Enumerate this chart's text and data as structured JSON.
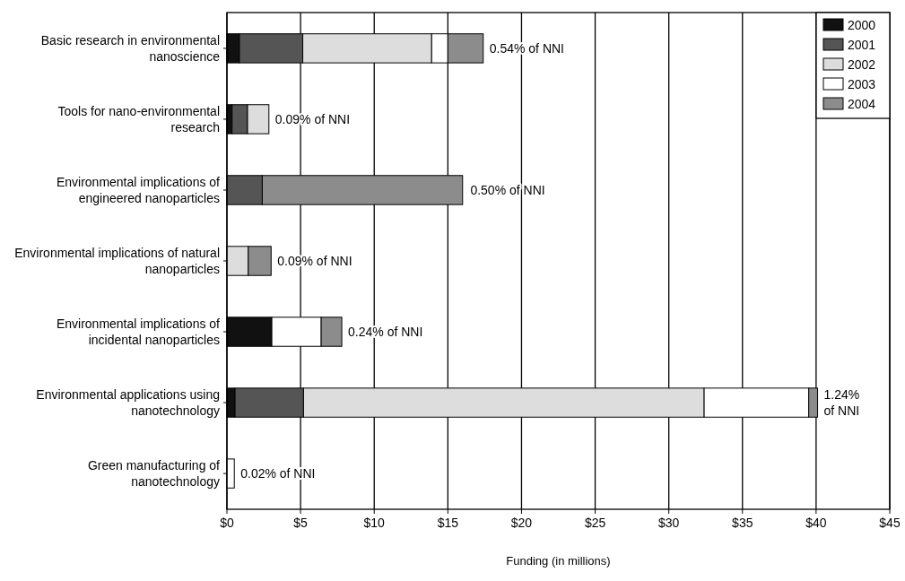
{
  "chart_data": {
    "type": "bar",
    "orientation": "horizontal",
    "stacked": true,
    "xlabel": "Funding (in millions)",
    "categories": [
      "Basic research in environmental nanoscience",
      "Tools for nano-environmental research",
      "Environmental implications of engineered nanoparticles",
      "Environmental implications of natural nanoparticles",
      "Environmental implications of incidental nanoparticles",
      "Environmental applications using nanotechnology",
      "Green manufacturing of nanotechnology"
    ],
    "series": [
      {
        "name": "2000",
        "color": "#111111",
        "values": [
          0.85,
          0.35,
          0,
          0,
          3.05,
          0.55,
          0
        ]
      },
      {
        "name": "2001",
        "color": "#555555",
        "values": [
          4.3,
          1.05,
          2.4,
          0,
          0,
          4.65,
          0
        ]
      },
      {
        "name": "2002",
        "color": "#dddddd",
        "values": [
          8.75,
          1.45,
          null,
          1.45,
          0,
          27.2,
          0
        ]
      },
      {
        "name": "2003",
        "color": "#ffffff",
        "values": [
          1.1,
          0,
          0,
          0,
          3.35,
          7.1,
          0.5
        ]
      },
      {
        "name": "2004",
        "color": "#8c8c8c",
        "values": [
          2.4,
          0,
          13.6,
          1.55,
          1.4,
          0.6,
          0
        ]
      }
    ],
    "xlim": [
      0,
      45
    ],
    "xticks": [
      {
        "value": 0,
        "label": "$0"
      },
      {
        "value": 5,
        "label": "$5"
      },
      {
        "value": 10,
        "label": "$10"
      },
      {
        "value": 15,
        "label": "$15"
      },
      {
        "value": 20,
        "label": "$20"
      },
      {
        "value": 25,
        "label": "$25"
      },
      {
        "value": 30,
        "label": "$30"
      },
      {
        "value": 35,
        "label": "$35"
      },
      {
        "value": 40,
        "label": "$40"
      },
      {
        "value": 45,
        "label": "$45"
      }
    ],
    "grid": "x",
    "legend": "top right",
    "annotations": [
      {
        "text": "0.54% of NNI",
        "x": 17.4,
        "y": "Basic research in environmental nanoscience"
      },
      {
        "text": "0.09% of NNI",
        "x": 2.85,
        "y": "Tools for nano-environmental research"
      },
      {
        "text": "0.50% of NNI",
        "x": 16.1,
        "y": "Environmental implications of engineered nanoparticles"
      },
      {
        "text": "0.09% of NNI",
        "x": 3.0,
        "y": "Environmental implications of natural nanoparticles"
      },
      {
        "text": "0.24% of NNI",
        "x": 7.8,
        "y": "Environmental implications of incidental nanoparticles"
      },
      {
        "text": "1.24% of NNI",
        "x": 40.1,
        "y": "Environmental applications using nanotechnology"
      },
      {
        "text": "0.02% of NNI",
        "x": 0.5,
        "y": "Green manufacturing of nanotechnology"
      }
    ]
  }
}
